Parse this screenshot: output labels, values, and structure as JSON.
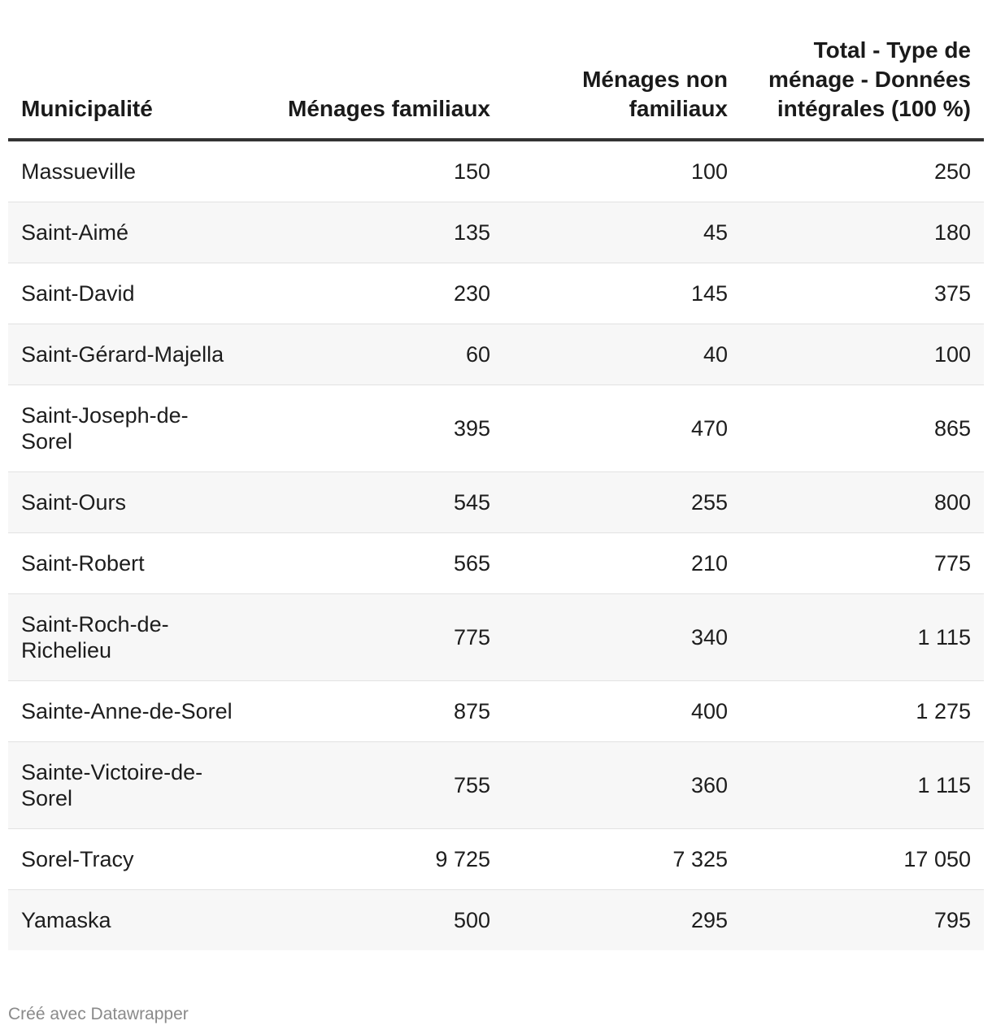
{
  "chart_data": {
    "type": "table",
    "columns": [
      "Municipalité",
      "Ménages familiaux",
      "Ménages non familiaux",
      "Total - Type de ménage - Données intégrales (100 %)"
    ],
    "rows": [
      [
        "Massueville",
        "150",
        "100",
        "250"
      ],
      [
        "Saint-Aimé",
        "135",
        "45",
        "180"
      ],
      [
        "Saint-David",
        "230",
        "145",
        "375"
      ],
      [
        "Saint-Gérard-Majella",
        "60",
        "40",
        "100"
      ],
      [
        "Saint-Joseph-de-Sorel",
        "395",
        "470",
        "865"
      ],
      [
        "Saint-Ours",
        "545",
        "255",
        "800"
      ],
      [
        "Saint-Robert",
        "565",
        "210",
        "775"
      ],
      [
        "Saint-Roch-de-Richelieu",
        "775",
        "340",
        "1 115"
      ],
      [
        "Sainte-Anne-de-Sorel",
        "875",
        "400",
        "1 275"
      ],
      [
        "Sainte-Victoire-de-Sorel",
        "755",
        "360",
        "1 115"
      ],
      [
        "Sorel-Tracy",
        "9 725",
        "7 325",
        "17 050"
      ],
      [
        "Yamaska",
        "500",
        "295",
        "795"
      ]
    ]
  },
  "footer": {
    "credit": "Créé avec Datawrapper"
  },
  "colors": {
    "header_rule": "#333333",
    "stripe": "#f7f7f7",
    "row_rule": "#e2e2e2",
    "credit_text": "#8a8a8a"
  }
}
